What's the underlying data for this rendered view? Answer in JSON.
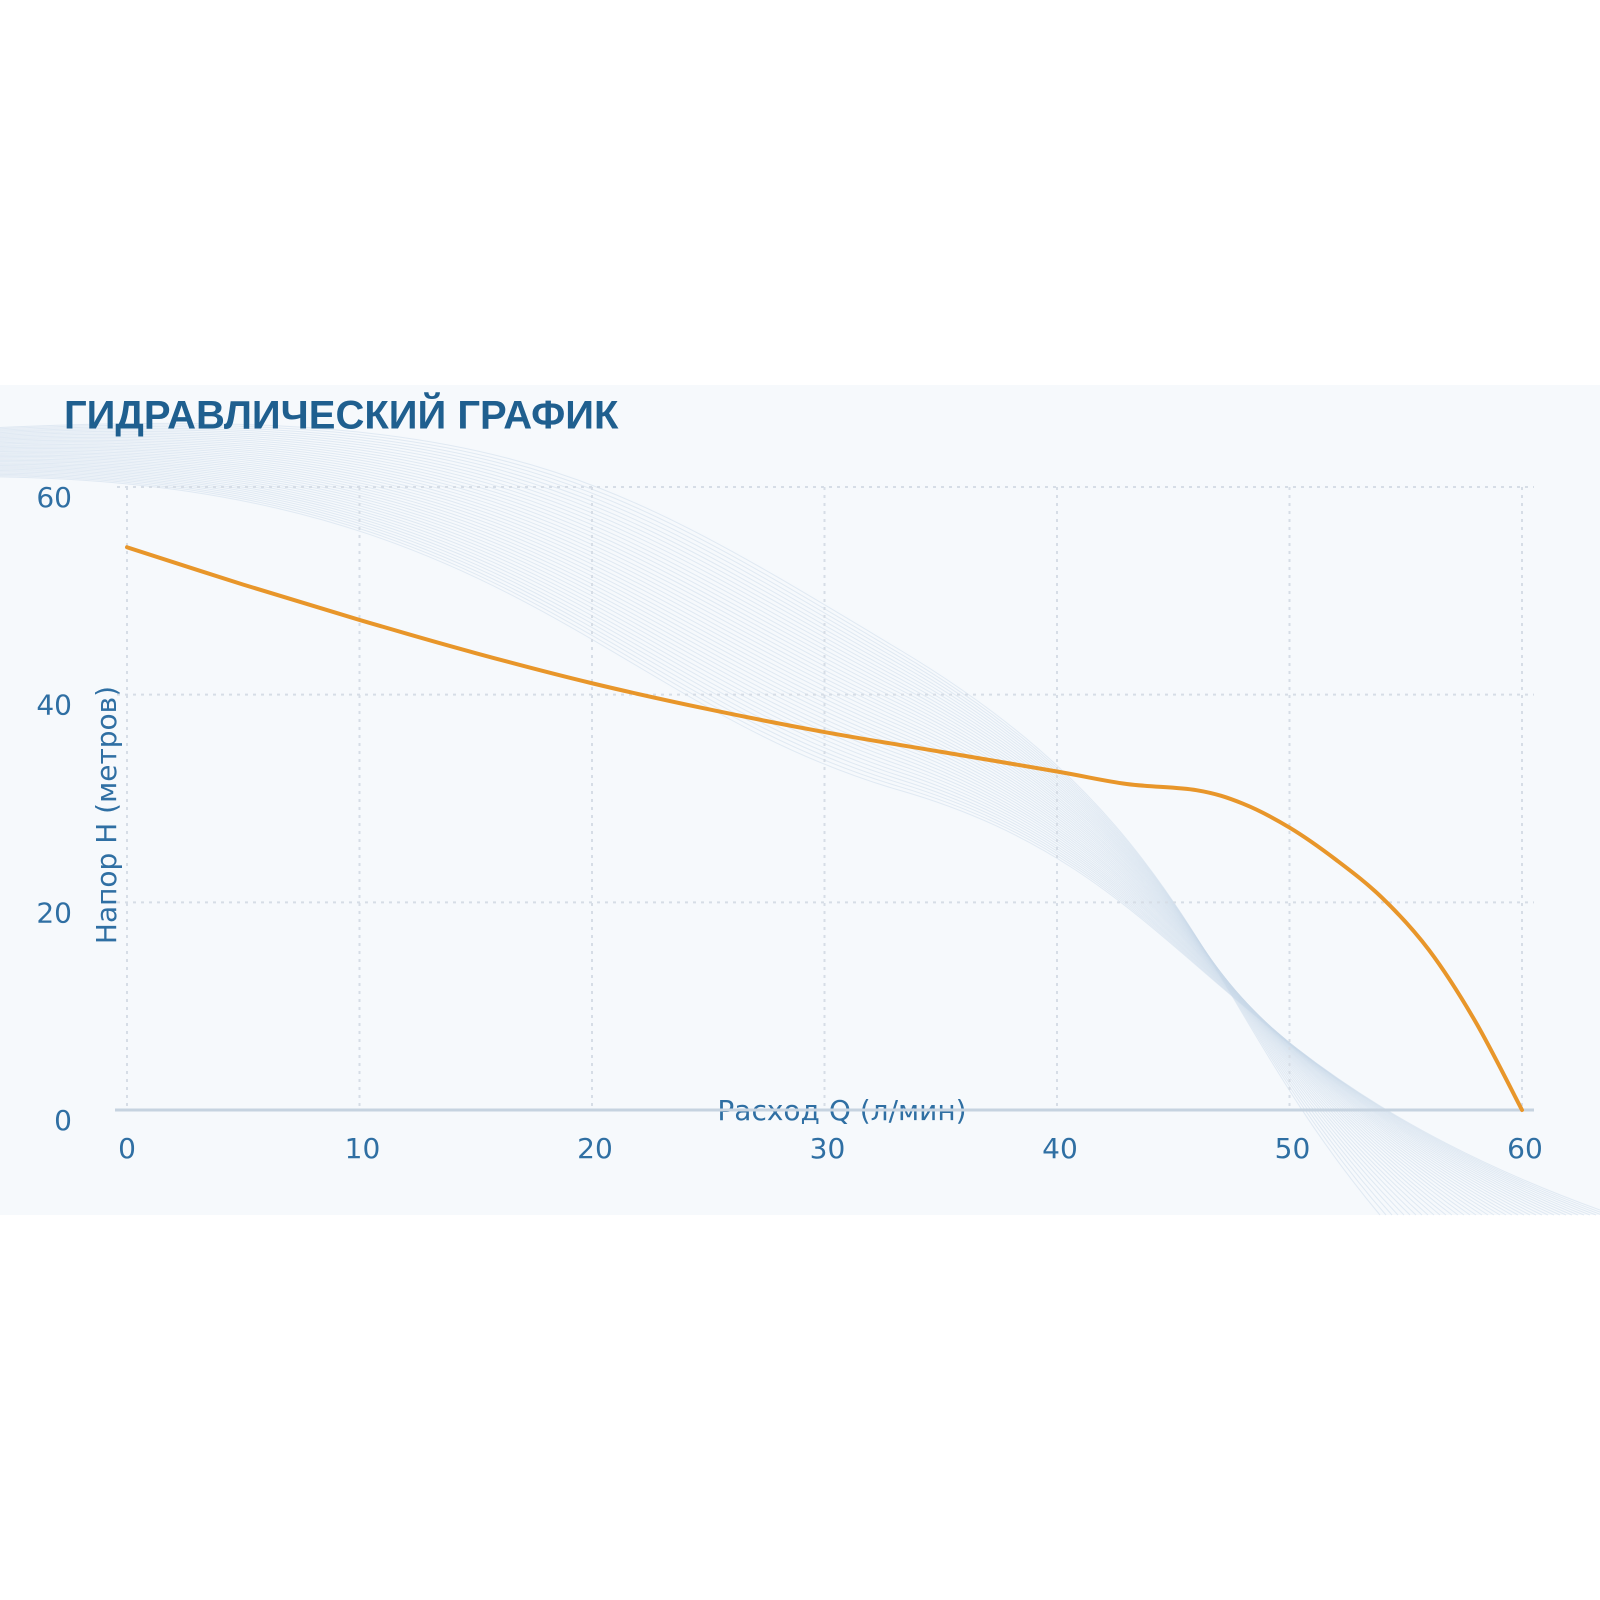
{
  "chart_data": {
    "type": "line",
    "title": "ГИДРАВЛИЧЕСКИЙ ГРАФИК",
    "x_label": "Расход Q (л/мин)",
    "y_label": "Напор H (метров)",
    "x": [
      0,
      5,
      10,
      15,
      20,
      25,
      30,
      35,
      40,
      43,
      46,
      48,
      50,
      52,
      54,
      56,
      58,
      60
    ],
    "values": [
      54.2,
      50.6,
      47.2,
      44,
      41.1,
      38.6,
      36.4,
      34.5,
      32.6,
      31.4,
      30.8,
      29.5,
      27.2,
      24.1,
      20.4,
      15.4,
      8.5,
      0
    ],
    "color": "#e8962a",
    "xlim": [
      0,
      60
    ],
    "xticks": [
      0,
      10,
      20,
      30,
      40,
      50,
      60
    ],
    "ylim": [
      0,
      60
    ],
    "yticks": [
      0,
      20,
      40,
      60
    ],
    "grid": true
  }
}
